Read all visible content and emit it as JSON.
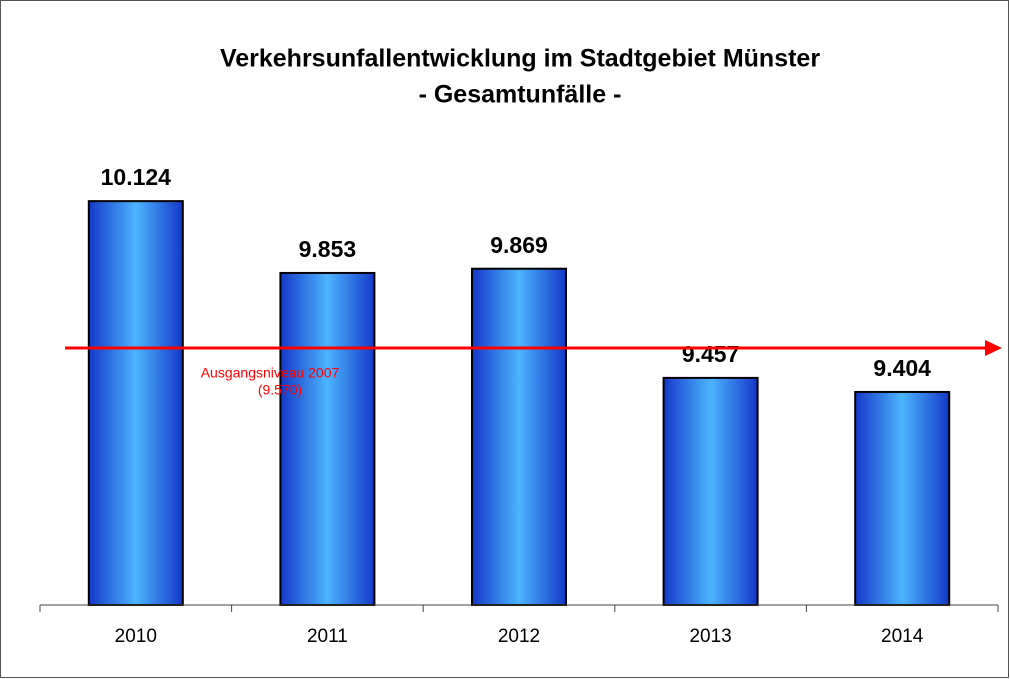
{
  "chart_data": {
    "type": "bar",
    "title": "Verkehrsunfallentwicklung im Stadtgebiet Münster",
    "subtitle": "- Gesamtunfälle -",
    "categories": [
      "2010",
      "2011",
      "2012",
      "2013",
      "2014"
    ],
    "values": [
      10124,
      9853,
      9869,
      9457,
      9404
    ],
    "value_labels": [
      "10.124",
      "9.853",
      "9.869",
      "9.457",
      "9.404"
    ],
    "color": "#2a7be8",
    "ylim": [
      8600,
      10800
    ],
    "reference": {
      "value": 9570,
      "label": "Ausgangsniveau  2007",
      "value_label": "(9.570)",
      "color": "#ff0000"
    }
  }
}
